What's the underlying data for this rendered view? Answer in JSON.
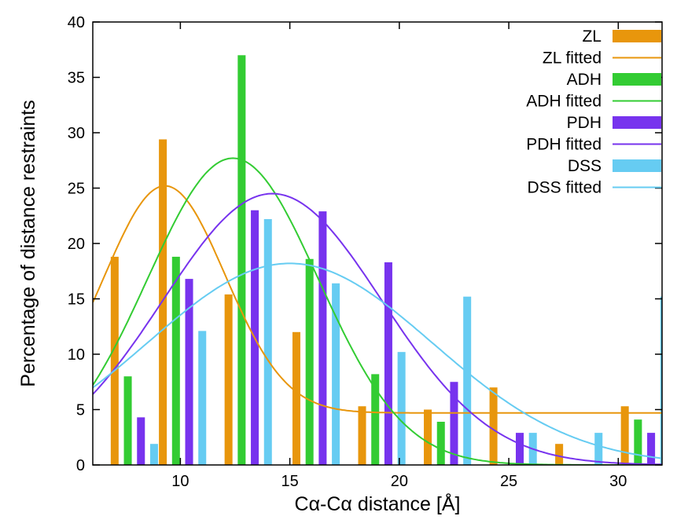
{
  "chart_data": {
    "type": "bar",
    "xlabel": "Cα-Cα distance [Å]",
    "ylabel": "Percentage of distance restraints",
    "xlim": [
      6,
      32
    ],
    "ylim": [
      0,
      40
    ],
    "x_ticks": [
      10,
      15,
      20,
      25,
      30
    ],
    "x_tick_labels": [
      "10",
      "15",
      "20",
      "25",
      "30"
    ],
    "y_ticks": [
      0,
      5,
      10,
      15,
      20,
      25,
      30,
      35,
      40
    ],
    "y_tick_labels": [
      "0",
      "5",
      "10",
      "15",
      "20",
      "25",
      "30",
      "35",
      "40"
    ],
    "grid": false,
    "legend_position": "top-right",
    "bin_centers": [
      7.9,
      10.1,
      13.1,
      16.2,
      19.2,
      22.2,
      25.2,
      28.2,
      31.2
    ],
    "bar_offsets": [
      -0.9,
      -0.3,
      0.3,
      0.9
    ],
    "series": [
      {
        "name": "ZL",
        "color": "#e8960c",
        "values": [
          18.8,
          29.4,
          15.4,
          12.0,
          5.3,
          5.0,
          7.0,
          1.9,
          5.3
        ],
        "fit": {
          "name": "ZL fitted",
          "amp": 20.5,
          "mu": 9.3,
          "sigma": 2.75,
          "base": 4.7
        }
      },
      {
        "name": "ADH",
        "color": "#33cc33",
        "values": [
          8.0,
          18.8,
          37.0,
          18.6,
          8.2,
          3.9,
          0.0,
          0.0,
          4.1
        ],
        "fit": {
          "name": "ADH fitted",
          "amp": 27.7,
          "mu": 12.4,
          "sigma": 3.9,
          "base": 0
        }
      },
      {
        "name": "PDH",
        "color": "#7733ee",
        "values": [
          4.3,
          16.8,
          23.0,
          22.9,
          18.3,
          7.5,
          2.9,
          0.0,
          2.9
        ],
        "fit": {
          "name": "PDH fitted",
          "amp": 24.5,
          "mu": 14.2,
          "sigma": 5.0,
          "base": 0
        }
      },
      {
        "name": "DSS",
        "color": "#66ccf2",
        "values": [
          1.9,
          12.1,
          22.2,
          16.4,
          10.2,
          15.2,
          2.9,
          2.9,
          15.2
        ],
        "fit": {
          "name": "DSS fitted",
          "amp": 18.2,
          "mu": 15.0,
          "sigma": 6.5,
          "base": 0
        }
      }
    ]
  }
}
